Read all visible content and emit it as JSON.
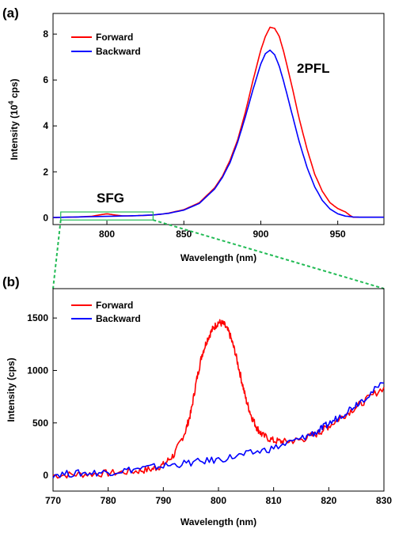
{
  "chart_data": [
    {
      "panel_label": "(a)",
      "type": "line",
      "xlabel": "Wavelength (nm)",
      "ylabel_main": "Intensity (10",
      "ylabel_sup": "4",
      "ylabel_tail": " cps)",
      "xlim": [
        765,
        980
      ],
      "ylim": [
        -0.3,
        8.9
      ],
      "xticks": [
        800,
        850,
        900,
        950
      ],
      "yticks": [
        0,
        2,
        4,
        6,
        8
      ],
      "annotations": [
        "2PFL",
        "SFG"
      ],
      "legend_position": "top-left",
      "series": [
        {
          "name": "Forward",
          "color": "#ff0000",
          "x": [
            765,
            780,
            790,
            795,
            800,
            805,
            810,
            815,
            820,
            825,
            830,
            835,
            840,
            850,
            860,
            870,
            875,
            880,
            885,
            890,
            895,
            900,
            903,
            906,
            909,
            912,
            915,
            920,
            925,
            930,
            935,
            940,
            945,
            950,
            955,
            958,
            960,
            965,
            980
          ],
          "y": [
            0.01,
            0.03,
            0.06,
            0.12,
            0.17,
            0.12,
            0.08,
            0.08,
            0.09,
            0.1,
            0.12,
            0.15,
            0.2,
            0.35,
            0.65,
            1.3,
            1.8,
            2.5,
            3.4,
            4.6,
            6.0,
            7.3,
            7.9,
            8.3,
            8.25,
            7.9,
            7.2,
            5.8,
            4.3,
            3.0,
            1.9,
            1.15,
            0.65,
            0.4,
            0.25,
            0.1,
            0.02,
            0.02,
            0.02
          ]
        },
        {
          "name": "Backward",
          "color": "#0000ff",
          "x": [
            765,
            780,
            800,
            820,
            830,
            840,
            850,
            860,
            870,
            875,
            880,
            885,
            890,
            895,
            900,
            903,
            906,
            909,
            912,
            915,
            920,
            925,
            930,
            935,
            940,
            945,
            950,
            955,
            960,
            965,
            980
          ],
          "y": [
            0.01,
            0.03,
            0.06,
            0.09,
            0.12,
            0.19,
            0.33,
            0.62,
            1.25,
            1.75,
            2.4,
            3.3,
            4.4,
            5.6,
            6.7,
            7.15,
            7.3,
            7.1,
            6.6,
            5.9,
            4.6,
            3.3,
            2.2,
            1.35,
            0.75,
            0.38,
            0.17,
            0.07,
            0.03,
            0.02,
            0.02
          ]
        }
      ]
    },
    {
      "panel_label": "(b)",
      "type": "line",
      "xlabel": "Wavelength (nm)",
      "ylabel": "Intensity (cps)",
      "xlim": [
        770,
        830
      ],
      "ylim": [
        -150,
        1780
      ],
      "xticks": [
        770,
        780,
        790,
        800,
        810,
        820,
        830
      ],
      "yticks": [
        0,
        500,
        1000,
        1500
      ],
      "legend_position": "top-left",
      "series": [
        {
          "name": "Forward",
          "color": "#ff0000",
          "x": [
            770,
            775,
            780,
            785,
            788,
            790,
            792,
            794,
            795,
            796,
            797,
            798,
            799,
            800,
            801,
            802,
            803,
            804,
            805,
            806,
            807,
            808,
            810,
            812,
            815,
            818,
            820,
            823,
            826,
            830
          ],
          "y": [
            0,
            10,
            20,
            40,
            60,
            100,
            200,
            420,
            600,
            900,
            1150,
            1300,
            1400,
            1460,
            1440,
            1350,
            1180,
            950,
            720,
            560,
            450,
            380,
            330,
            320,
            340,
            400,
            470,
            580,
            690,
            840
          ]
        },
        {
          "name": "Backward",
          "color": "#0000ff",
          "x": [
            770,
            775,
            780,
            785,
            790,
            795,
            800,
            805,
            810,
            815,
            818,
            820,
            823,
            826,
            830
          ],
          "y": [
            10,
            20,
            30,
            60,
            90,
            120,
            150,
            200,
            260,
            350,
            420,
            490,
            600,
            720,
            880
          ]
        }
      ]
    }
  ]
}
